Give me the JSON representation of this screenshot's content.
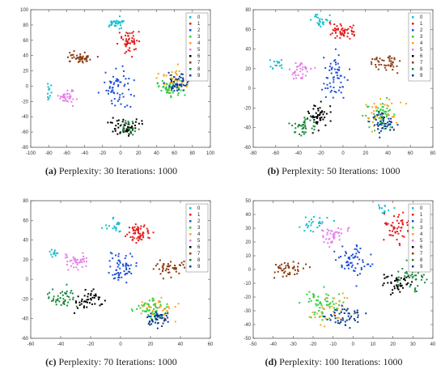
{
  "colors": {
    "0": "#17becf",
    "1": "#e31a1c",
    "2": "#1f4fd8",
    "3": "#2ecc40",
    "4": "#f5a623",
    "5": "#e67ee8",
    "6": "#000000",
    "7": "#8b3a0f",
    "8": "#1a8a3a",
    "9": "#0b3d91"
  },
  "chart_data": [
    {
      "type": "scatter",
      "caption_letter": "(a)",
      "caption_text": "Perplexity: 30 Iterations: 1000",
      "xlim": [
        -100,
        100
      ],
      "ylim": [
        -80,
        100
      ],
      "xticks": [
        -100,
        -80,
        -60,
        -40,
        -20,
        0,
        20,
        40,
        60,
        80,
        100
      ],
      "yticks": [
        -80,
        -60,
        -40,
        -20,
        0,
        20,
        40,
        60,
        80,
        100
      ],
      "legend": [
        "0",
        "1",
        "2",
        "3",
        "4",
        "5",
        "6",
        "7",
        "8",
        "9"
      ],
      "clusters": [
        {
          "label": "0",
          "cx": -5,
          "cy": 82,
          "sx": 9,
          "sy": 6,
          "n": 30
        },
        {
          "label": "1",
          "cx": 10,
          "cy": 58,
          "sx": 9,
          "sy": 13,
          "n": 50
        },
        {
          "label": "2",
          "cx": -3,
          "cy": 0,
          "sx": 13,
          "sy": 22,
          "n": 60
        },
        {
          "label": "3",
          "cx": 55,
          "cy": 0,
          "sx": 14,
          "sy": 10,
          "n": 55
        },
        {
          "label": "4",
          "cx": 60,
          "cy": 10,
          "sx": 14,
          "sy": 14,
          "n": 35
        },
        {
          "label": "5",
          "cx": -58,
          "cy": -15,
          "sx": 8,
          "sy": 8,
          "n": 35
        },
        {
          "label": "6",
          "cx": 5,
          "cy": -52,
          "sx": 14,
          "sy": 10,
          "n": 55
        },
        {
          "label": "7",
          "cx": -45,
          "cy": 37,
          "sx": 12,
          "sy": 6,
          "n": 45
        },
        {
          "label": "8",
          "cx": 10,
          "cy": -55,
          "sx": 10,
          "sy": 8,
          "n": 20
        },
        {
          "label": "9",
          "cx": 62,
          "cy": 5,
          "sx": 13,
          "sy": 10,
          "n": 50
        },
        {
          "label": "0",
          "cx": -80,
          "cy": -8,
          "sx": 3,
          "sy": 8,
          "n": 12
        }
      ]
    },
    {
      "type": "scatter",
      "caption_letter": "(b)",
      "caption_text": "Perplexity: 50 Iterations: 1000",
      "xlim": [
        -80,
        80
      ],
      "ylim": [
        -60,
        80
      ],
      "xticks": [
        -80,
        -60,
        -40,
        -20,
        0,
        20,
        40,
        60,
        80
      ],
      "yticks": [
        -60,
        -40,
        -20,
        0,
        20,
        40,
        60,
        80
      ],
      "legend": [
        "0",
        "1",
        "2",
        "3",
        "4",
        "5",
        "6",
        "7",
        "8",
        "9"
      ],
      "clusters": [
        {
          "label": "0",
          "cx": -20,
          "cy": 68,
          "sx": 7,
          "sy": 5,
          "n": 25
        },
        {
          "label": "0",
          "cx": -60,
          "cy": 25,
          "sx": 6,
          "sy": 7,
          "n": 15
        },
        {
          "label": "1",
          "cx": 0,
          "cy": 58,
          "sx": 9,
          "sy": 7,
          "n": 55
        },
        {
          "label": "2",
          "cx": -8,
          "cy": 12,
          "sx": 8,
          "sy": 18,
          "n": 60
        },
        {
          "label": "3",
          "cx": 33,
          "cy": -28,
          "sx": 10,
          "sy": 13,
          "n": 55
        },
        {
          "label": "4",
          "cx": 35,
          "cy": -25,
          "sx": 14,
          "sy": 14,
          "n": 35
        },
        {
          "label": "5",
          "cx": -38,
          "cy": 18,
          "sx": 8,
          "sy": 8,
          "n": 35
        },
        {
          "label": "6",
          "cx": -22,
          "cy": -28,
          "sx": 10,
          "sy": 10,
          "n": 50
        },
        {
          "label": "7",
          "cx": 40,
          "cy": 27,
          "sx": 12,
          "sy": 7,
          "n": 45
        },
        {
          "label": "8",
          "cx": -35,
          "cy": -38,
          "sx": 9,
          "sy": 8,
          "n": 40
        },
        {
          "label": "9",
          "cx": 38,
          "cy": -35,
          "sx": 9,
          "sy": 10,
          "n": 50
        }
      ]
    },
    {
      "type": "scatter",
      "caption_letter": "(c)",
      "caption_text": "Perplexity: 70 Iterations: 1000",
      "xlim": [
        -60,
        60
      ],
      "ylim": [
        -60,
        80
      ],
      "xticks": [
        -60,
        -40,
        -20,
        0,
        20,
        40,
        60
      ],
      "yticks": [
        -60,
        -40,
        -20,
        0,
        20,
        40,
        60,
        80
      ],
      "legend": [
        "0",
        "1",
        "2",
        "3",
        "4",
        "5",
        "6",
        "7",
        "8",
        "9"
      ],
      "clusters": [
        {
          "label": "0",
          "cx": -5,
          "cy": 55,
          "sx": 5,
          "sy": 5,
          "n": 20
        },
        {
          "label": "0",
          "cx": -45,
          "cy": 28,
          "sx": 4,
          "sy": 5,
          "n": 12
        },
        {
          "label": "1",
          "cx": 12,
          "cy": 47,
          "sx": 7,
          "sy": 9,
          "n": 55
        },
        {
          "label": "2",
          "cx": 0,
          "cy": 12,
          "sx": 8,
          "sy": 14,
          "n": 60
        },
        {
          "label": "3",
          "cx": 20,
          "cy": -30,
          "sx": 9,
          "sy": 9,
          "n": 55
        },
        {
          "label": "4",
          "cx": 25,
          "cy": -30,
          "sx": 11,
          "sy": 12,
          "n": 35
        },
        {
          "label": "5",
          "cx": -30,
          "cy": 20,
          "sx": 7,
          "sy": 7,
          "n": 40
        },
        {
          "label": "6",
          "cx": -22,
          "cy": -22,
          "sx": 8,
          "sy": 9,
          "n": 45
        },
        {
          "label": "7",
          "cx": 33,
          "cy": 12,
          "sx": 9,
          "sy": 6,
          "n": 45
        },
        {
          "label": "8",
          "cx": -40,
          "cy": -18,
          "sx": 7,
          "sy": 8,
          "n": 45
        },
        {
          "label": "9",
          "cx": 25,
          "cy": -40,
          "sx": 7,
          "sy": 8,
          "n": 50
        }
      ]
    },
    {
      "type": "scatter",
      "caption_letter": "(d)",
      "caption_text": "Perplexity: 100 Iterations: 1000",
      "xlim": [
        -50,
        40
      ],
      "ylim": [
        -50,
        50
      ],
      "xticks": [
        -50,
        -40,
        -30,
        -20,
        -10,
        0,
        10,
        20,
        30,
        40
      ],
      "yticks": [
        -50,
        -40,
        -30,
        -20,
        -10,
        0,
        10,
        20,
        30,
        40,
        50
      ],
      "legend": [
        "0",
        "1",
        "2",
        "3",
        "4",
        "5",
        "6",
        "7",
        "8",
        "9"
      ],
      "clusters": [
        {
          "label": "0",
          "cx": -20,
          "cy": 32,
          "sx": 6,
          "sy": 5,
          "n": 25
        },
        {
          "label": "0",
          "cx": 15,
          "cy": 45,
          "sx": 4,
          "sy": 3,
          "n": 12
        },
        {
          "label": "1",
          "cx": 22,
          "cy": 30,
          "sx": 5,
          "sy": 9,
          "n": 50
        },
        {
          "label": "2",
          "cx": 0,
          "cy": 5,
          "sx": 7,
          "sy": 10,
          "n": 60
        },
        {
          "label": "3",
          "cx": -15,
          "cy": -25,
          "sx": 8,
          "sy": 8,
          "n": 55
        },
        {
          "label": "4",
          "cx": -12,
          "cy": -30,
          "sx": 10,
          "sy": 10,
          "n": 35
        },
        {
          "label": "5",
          "cx": -10,
          "cy": 25,
          "sx": 6,
          "sy": 6,
          "n": 40
        },
        {
          "label": "6",
          "cx": 22,
          "cy": -10,
          "sx": 6,
          "sy": 6,
          "n": 45
        },
        {
          "label": "7",
          "cx": -33,
          "cy": 0,
          "sx": 7,
          "sy": 5,
          "n": 45
        },
        {
          "label": "8",
          "cx": 30,
          "cy": -5,
          "sx": 6,
          "sy": 8,
          "n": 40
        },
        {
          "label": "9",
          "cx": -5,
          "cy": -35,
          "sx": 8,
          "sy": 6,
          "n": 50
        }
      ]
    }
  ]
}
